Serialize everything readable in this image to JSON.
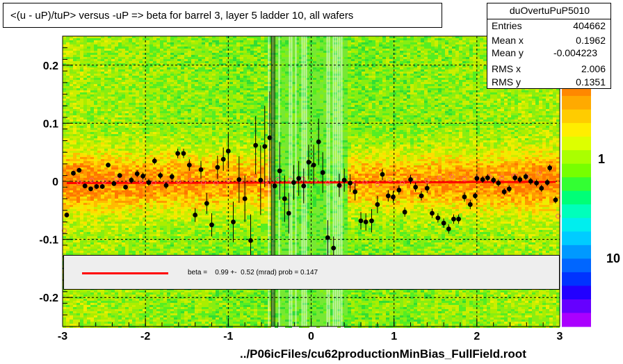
{
  "title": "<(u - uP)/tuP> versus  -uP => beta for barrel 3, layer 5 ladder 10, all wafers",
  "stats": {
    "name": "duOvertuPuP5010",
    "rows": [
      {
        "label": "Entries",
        "value": "404662"
      },
      {
        "label": "Mean x",
        "value": "0.1962"
      },
      {
        "label": "Mean y",
        "value": "-0.004223"
      },
      {
        "label": "RMS x",
        "value": "2.006"
      },
      {
        "label": "RMS y",
        "value": "0.1351"
      }
    ]
  },
  "fit_label": "beta =    0.99 +-  0.52 (mrad) prob = 0.147",
  "footer": "../P06icFiles/cu62productionMinBias_FullField.root",
  "colors": {
    "fit_line": "#ff0000",
    "profile_open": "#ff6666",
    "points": "#000000",
    "fit_box": "#eeeeee"
  },
  "chart_data": {
    "type": "scatter",
    "xlim": [
      -3,
      3
    ],
    "ylim": [
      -0.25,
      0.25
    ],
    "x_ticks": [
      -3,
      -2,
      -1,
      0,
      1,
      2,
      3
    ],
    "x_tick_labels": [
      "-3",
      "-2",
      "-1",
      "0",
      "1",
      "2",
      "3"
    ],
    "y_ticks": [
      -0.2,
      -0.1,
      0,
      0.1,
      0.2
    ],
    "y_tick_labels": [
      "-0.2",
      "-0.1",
      "0",
      "0.1",
      "0.2"
    ],
    "z_tick_labels": [
      "1",
      "10"
    ],
    "grid": true,
    "background": "2D histogram heatmap (green/yellow/orange), white vertical band near x = 0",
    "fit": {
      "x": [
        -2.95,
        2.95
      ],
      "y": [
        -0.003,
        -0.001
      ]
    },
    "points": [
      {
        "x": -2.95,
        "y": -0.058,
        "e": 0.004
      },
      {
        "x": -2.87,
        "y": 0.014,
        "e": 0.004
      },
      {
        "x": -2.8,
        "y": 0.019,
        "e": 0.004
      },
      {
        "x": -2.73,
        "y": -0.008,
        "e": 0.004
      },
      {
        "x": -2.66,
        "y": -0.013,
        "e": 0.004
      },
      {
        "x": -2.59,
        "y": -0.009,
        "e": 0.004
      },
      {
        "x": -2.52,
        "y": -0.009,
        "e": 0.004
      },
      {
        "x": -2.45,
        "y": 0.028,
        "e": 0.004
      },
      {
        "x": -2.38,
        "y": -0.004,
        "e": 0.004
      },
      {
        "x": -2.31,
        "y": 0.01,
        "e": 0.004
      },
      {
        "x": -2.24,
        "y": -0.01,
        "e": 0.004
      },
      {
        "x": -2.17,
        "y": 0.002,
        "e": 0.006
      },
      {
        "x": -2.1,
        "y": 0.013,
        "e": 0.006
      },
      {
        "x": -2.03,
        "y": 0.009,
        "e": 0.006
      },
      {
        "x": -1.96,
        "y": -0.002,
        "e": 0.006
      },
      {
        "x": -1.89,
        "y": 0.035,
        "e": 0.006
      },
      {
        "x": -1.82,
        "y": 0.01,
        "e": 0.006
      },
      {
        "x": -1.75,
        "y": -0.007,
        "e": 0.006
      },
      {
        "x": -1.68,
        "y": 0.008,
        "e": 0.006
      },
      {
        "x": -1.61,
        "y": 0.048,
        "e": 0.008
      },
      {
        "x": -1.54,
        "y": 0.048,
        "e": 0.008
      },
      {
        "x": -1.47,
        "y": 0.028,
        "e": 0.01
      },
      {
        "x": -1.4,
        "y": -0.058,
        "e": 0.012
      },
      {
        "x": -1.33,
        "y": 0.02,
        "e": 0.015
      },
      {
        "x": -1.26,
        "y": -0.038,
        "e": 0.018
      },
      {
        "x": -1.2,
        "y": -0.075,
        "e": 0.02
      },
      {
        "x": -1.13,
        "y": 0.024,
        "e": 0.02
      },
      {
        "x": -1.06,
        "y": 0.038,
        "e": 0.02
      },
      {
        "x": -1.0,
        "y": 0.052,
        "e": 0.03
      },
      {
        "x": -0.94,
        "y": -0.07,
        "e": 0.035
      },
      {
        "x": -0.87,
        "y": 0.003,
        "e": 0.04
      },
      {
        "x": -0.8,
        "y": -0.03,
        "e": 0.04
      },
      {
        "x": -0.73,
        "y": -0.102,
        "e": 0.045
      },
      {
        "x": -0.67,
        "y": 0.062,
        "e": 0.05
      },
      {
        "x": -0.61,
        "y": 0.002,
        "e": 0.06
      },
      {
        "x": -0.56,
        "y": 0.06,
        "e": 0.07
      },
      {
        "x": -0.5,
        "y": 0.075,
        "e": 0.08
      },
      {
        "x": -0.44,
        "y": -0.008,
        "e": 0.06
      },
      {
        "x": -0.38,
        "y": 0.018,
        "e": 0.05
      },
      {
        "x": -0.32,
        "y": -0.03,
        "e": 0.04
      },
      {
        "x": -0.27,
        "y": -0.055,
        "e": 0.035
      },
      {
        "x": -0.21,
        "y": -0.002,
        "e": 0.03
      },
      {
        "x": -0.15,
        "y": 0.005,
        "e": 0.03
      },
      {
        "x": -0.09,
        "y": -0.008,
        "e": 0.03
      },
      {
        "x": -0.03,
        "y": 0.033,
        "e": 0.03
      },
      {
        "x": 0.03,
        "y": 0.028,
        "e": 0.035
      },
      {
        "x": 0.09,
        "y": 0.068,
        "e": 0.04
      },
      {
        "x": 0.14,
        "y": 0.015,
        "e": 0.035
      },
      {
        "x": 0.2,
        "y": -0.097,
        "e": 0.03
      },
      {
        "x": 0.27,
        "y": -0.115,
        "e": 0.02
      },
      {
        "x": 0.34,
        "y": -0.007,
        "e": 0.02
      },
      {
        "x": 0.4,
        "y": 0.002,
        "e": 0.02
      },
      {
        "x": 0.47,
        "y": -0.003,
        "e": 0.015
      },
      {
        "x": 0.53,
        "y": -0.018,
        "e": 0.015
      },
      {
        "x": 0.6,
        "y": -0.068,
        "e": 0.015
      },
      {
        "x": 0.66,
        "y": -0.07,
        "e": 0.015
      },
      {
        "x": 0.73,
        "y": -0.068,
        "e": 0.02
      },
      {
        "x": 0.8,
        "y": -0.04,
        "e": 0.015
      },
      {
        "x": 0.86,
        "y": 0.012,
        "e": 0.01
      },
      {
        "x": 0.93,
        "y": -0.025,
        "e": 0.01
      },
      {
        "x": 0.99,
        "y": -0.027,
        "e": 0.01
      },
      {
        "x": 1.06,
        "y": -0.015,
        "e": 0.008
      },
      {
        "x": 1.13,
        "y": -0.053,
        "e": 0.008
      },
      {
        "x": 1.2,
        "y": 0.003,
        "e": 0.008
      },
      {
        "x": 1.26,
        "y": -0.01,
        "e": 0.008
      },
      {
        "x": 1.33,
        "y": -0.025,
        "e": 0.008
      },
      {
        "x": 1.4,
        "y": -0.012,
        "e": 0.008
      },
      {
        "x": 1.46,
        "y": -0.055,
        "e": 0.008
      },
      {
        "x": 1.53,
        "y": -0.063,
        "e": 0.008
      },
      {
        "x": 1.6,
        "y": -0.072,
        "e": 0.008
      },
      {
        "x": 1.66,
        "y": -0.082,
        "e": 0.008
      },
      {
        "x": 1.72,
        "y": -0.065,
        "e": 0.008
      },
      {
        "x": 1.78,
        "y": -0.065,
        "e": 0.008
      },
      {
        "x": 1.85,
        "y": -0.027,
        "e": 0.008
      },
      {
        "x": 1.92,
        "y": -0.04,
        "e": 0.008
      },
      {
        "x": 1.98,
        "y": -0.025,
        "e": 0.006
      },
      {
        "x": 2.0,
        "y": 0.005,
        "e": 0.006
      },
      {
        "x": 2.07,
        "y": 0.003,
        "e": 0.006
      },
      {
        "x": 2.13,
        "y": 0.006,
        "e": 0.006
      },
      {
        "x": 2.2,
        "y": 0.002,
        "e": 0.006
      },
      {
        "x": 2.26,
        "y": -0.003,
        "e": 0.006
      },
      {
        "x": 2.33,
        "y": -0.018,
        "e": 0.006
      },
      {
        "x": 2.39,
        "y": -0.013,
        "e": 0.006
      },
      {
        "x": 2.46,
        "y": 0.006,
        "e": 0.006
      },
      {
        "x": 2.52,
        "y": 0.003,
        "e": 0.006
      },
      {
        "x": 2.59,
        "y": 0.008,
        "e": 0.006
      },
      {
        "x": 2.65,
        "y": 0.0,
        "e": 0.006
      },
      {
        "x": 2.72,
        "y": -0.003,
        "e": 0.006
      },
      {
        "x": 2.78,
        "y": -0.012,
        "e": 0.006
      },
      {
        "x": 2.85,
        "y": -0.002,
        "e": 0.006
      },
      {
        "x": 2.88,
        "y": 0.023,
        "e": 0.006
      },
      {
        "x": 2.95,
        "y": -0.032,
        "e": 0.006
      }
    ],
    "profile": [
      {
        "x": -2.98,
        "y": -0.085
      },
      {
        "x": -2.8,
        "y": -0.002
      },
      {
        "x": -2.65,
        "y": 0.002
      },
      {
        "x": -2.5,
        "y": 0.0
      },
      {
        "x": -2.35,
        "y": 0.004
      },
      {
        "x": -2.2,
        "y": 0.002
      },
      {
        "x": -2.05,
        "y": 0.0
      },
      {
        "x": -1.9,
        "y": -0.003
      },
      {
        "x": -1.75,
        "y": -0.002
      },
      {
        "x": -1.6,
        "y": 0.0
      },
      {
        "x": -1.45,
        "y": 0.002
      },
      {
        "x": -1.3,
        "y": -0.002
      },
      {
        "x": -1.15,
        "y": -0.003
      },
      {
        "x": -1.0,
        "y": 0.002
      },
      {
        "x": -0.85,
        "y": 0.001
      },
      {
        "x": -0.7,
        "y": 0.004
      },
      {
        "x": -0.55,
        "y": 0.0
      },
      {
        "x": -0.4,
        "y": 0.003
      },
      {
        "x": -0.25,
        "y": 0.002
      },
      {
        "x": -0.1,
        "y": 0.004
      },
      {
        "x": 0.05,
        "y": 0.002
      },
      {
        "x": 0.2,
        "y": -0.003
      },
      {
        "x": 0.35,
        "y": -0.008
      },
      {
        "x": 0.5,
        "y": -0.004
      },
      {
        "x": 0.65,
        "y": -0.002
      },
      {
        "x": 0.8,
        "y": -0.005
      },
      {
        "x": 0.95,
        "y": 0.003
      },
      {
        "x": 1.1,
        "y": -0.003
      },
      {
        "x": 1.25,
        "y": 0.004
      },
      {
        "x": 1.4,
        "y": 0.001
      },
      {
        "x": 1.55,
        "y": 0.006
      },
      {
        "x": 1.7,
        "y": 0.008
      },
      {
        "x": 1.85,
        "y": 0.004
      },
      {
        "x": 2.0,
        "y": 0.006
      },
      {
        "x": 2.15,
        "y": 0.008
      },
      {
        "x": 2.3,
        "y": 0.006
      },
      {
        "x": 2.45,
        "y": 0.01
      },
      {
        "x": 2.6,
        "y": 0.008
      },
      {
        "x": 2.75,
        "y": 0.014
      },
      {
        "x": 2.98,
        "y": -0.06
      }
    ]
  }
}
